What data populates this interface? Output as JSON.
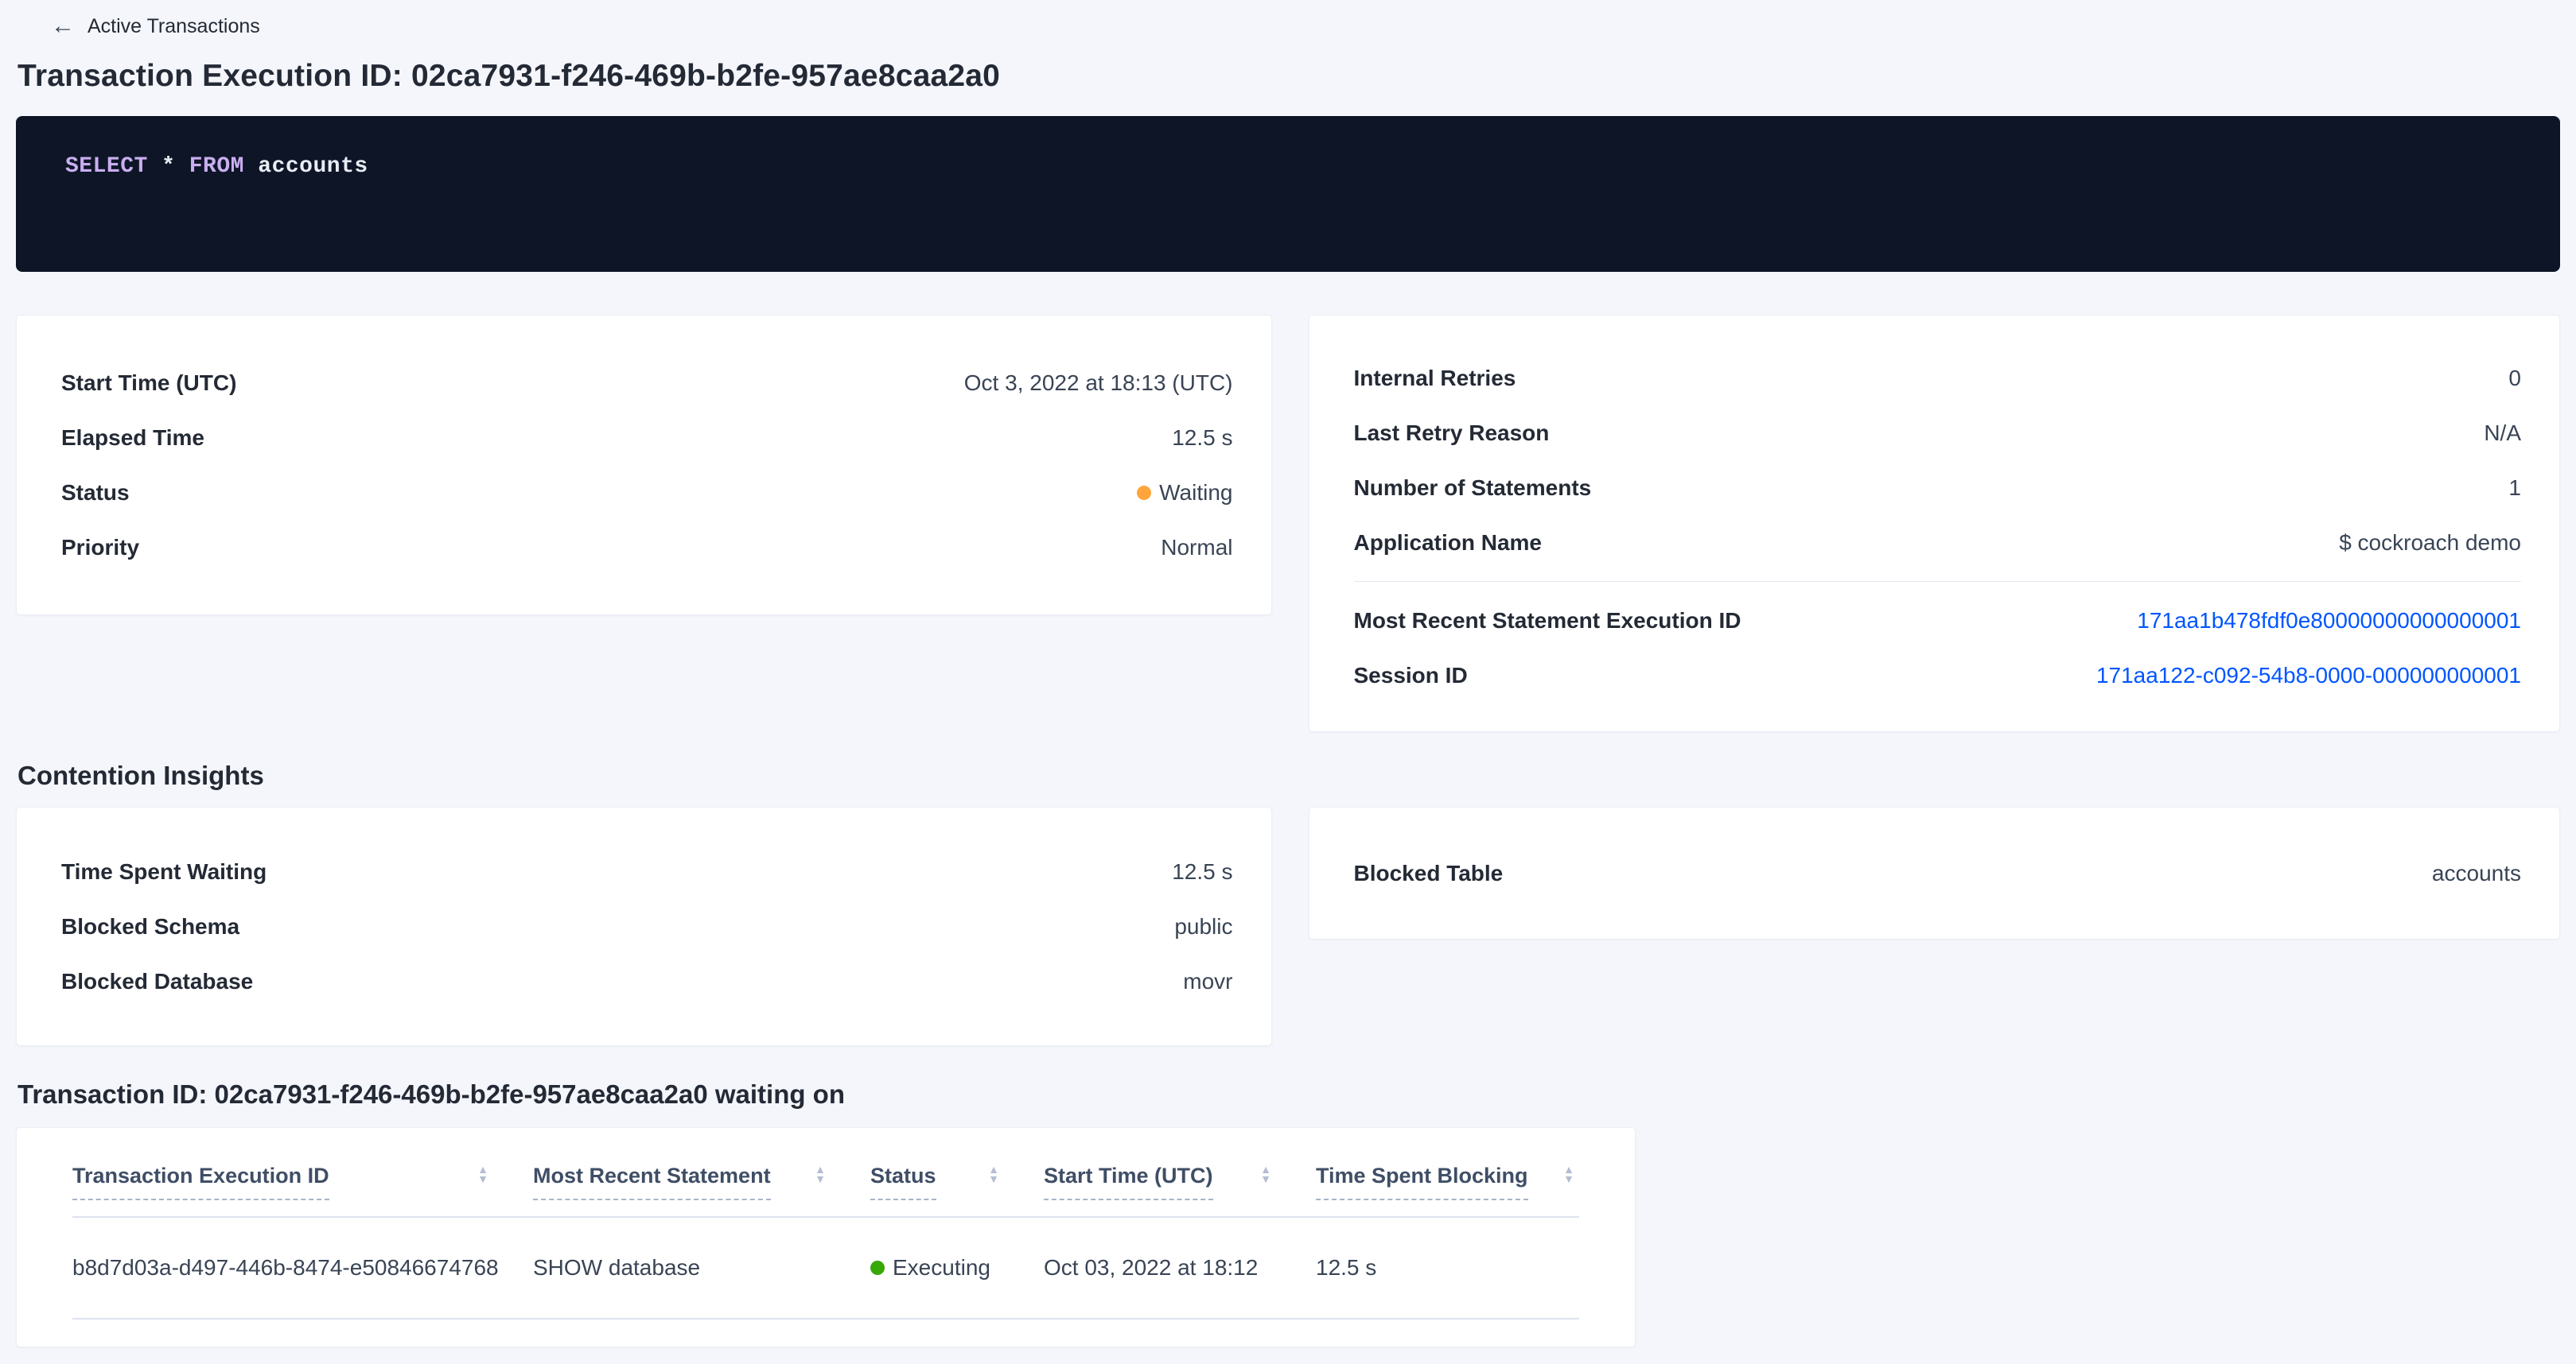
{
  "colors": {
    "page_background": "#f4f6fb",
    "link_blue": "#0055ff",
    "status_waiting_dot": "#ffa53b",
    "status_executing_dot": "#37a806",
    "sql_box_background": "#0e1526",
    "sql_keyword": "#c9aef0"
  },
  "icons": {
    "back_arrow": "←",
    "sort_asc": "▲",
    "sort_desc": "▼"
  },
  "header": {
    "back_label": "Active Transactions",
    "title": "Transaction Execution ID: 02ca7931-f246-469b-b2fe-957ae8caa2a0"
  },
  "sql": {
    "select_kw": "SELECT",
    "star": " * ",
    "from_kw": "FROM",
    "table_name": " accounts"
  },
  "summary_card": {
    "rows": [
      {
        "label": "Start Time (UTC)",
        "value": "Oct 3, 2022 at 18:13 (UTC)"
      },
      {
        "label": "Elapsed Time",
        "value": "12.5 s"
      },
      {
        "label": "Status",
        "value": "Waiting",
        "status_color": "#ffa53b"
      },
      {
        "label": "Priority",
        "value": "Normal"
      }
    ]
  },
  "meta_card": {
    "rows": [
      {
        "label": "Internal Retries",
        "value": "0"
      },
      {
        "label": "Last Retry Reason",
        "value": "N/A"
      },
      {
        "label": "Number of Statements",
        "value": "1"
      },
      {
        "label": "Application Name",
        "value": "$ cockroach demo"
      }
    ],
    "link_rows": [
      {
        "label": "Most Recent Statement Execution ID",
        "value": "171aa1b478fdf0e80000000000000001"
      },
      {
        "label": "Session ID",
        "value": "171aa122-c092-54b8-0000-000000000001"
      }
    ]
  },
  "contention": {
    "heading": "Contention Insights",
    "left_rows": [
      {
        "label": "Time Spent Waiting",
        "value": "12.5 s"
      },
      {
        "label": "Blocked Schema",
        "value": "public"
      },
      {
        "label": "Blocked Database",
        "value": "movr"
      }
    ],
    "right_rows": [
      {
        "label": "Blocked Table",
        "value": "accounts"
      }
    ]
  },
  "waiting_table": {
    "heading": "Transaction ID: 02ca7931-f246-469b-b2fe-957ae8caa2a0 waiting on",
    "columns": [
      "Transaction Execution ID",
      "Most Recent Statement",
      "Status",
      "Start Time (UTC)",
      "Time Spent Blocking"
    ],
    "rows": [
      {
        "transaction_execution_id": "b8d7d03a-d497-446b-8474-e50846674768",
        "most_recent_statement": "SHOW database",
        "status": "Executing",
        "status_color": "#37a806",
        "start_time": "Oct 03, 2022 at 18:12",
        "time_spent_blocking": "12.5 s"
      }
    ]
  }
}
